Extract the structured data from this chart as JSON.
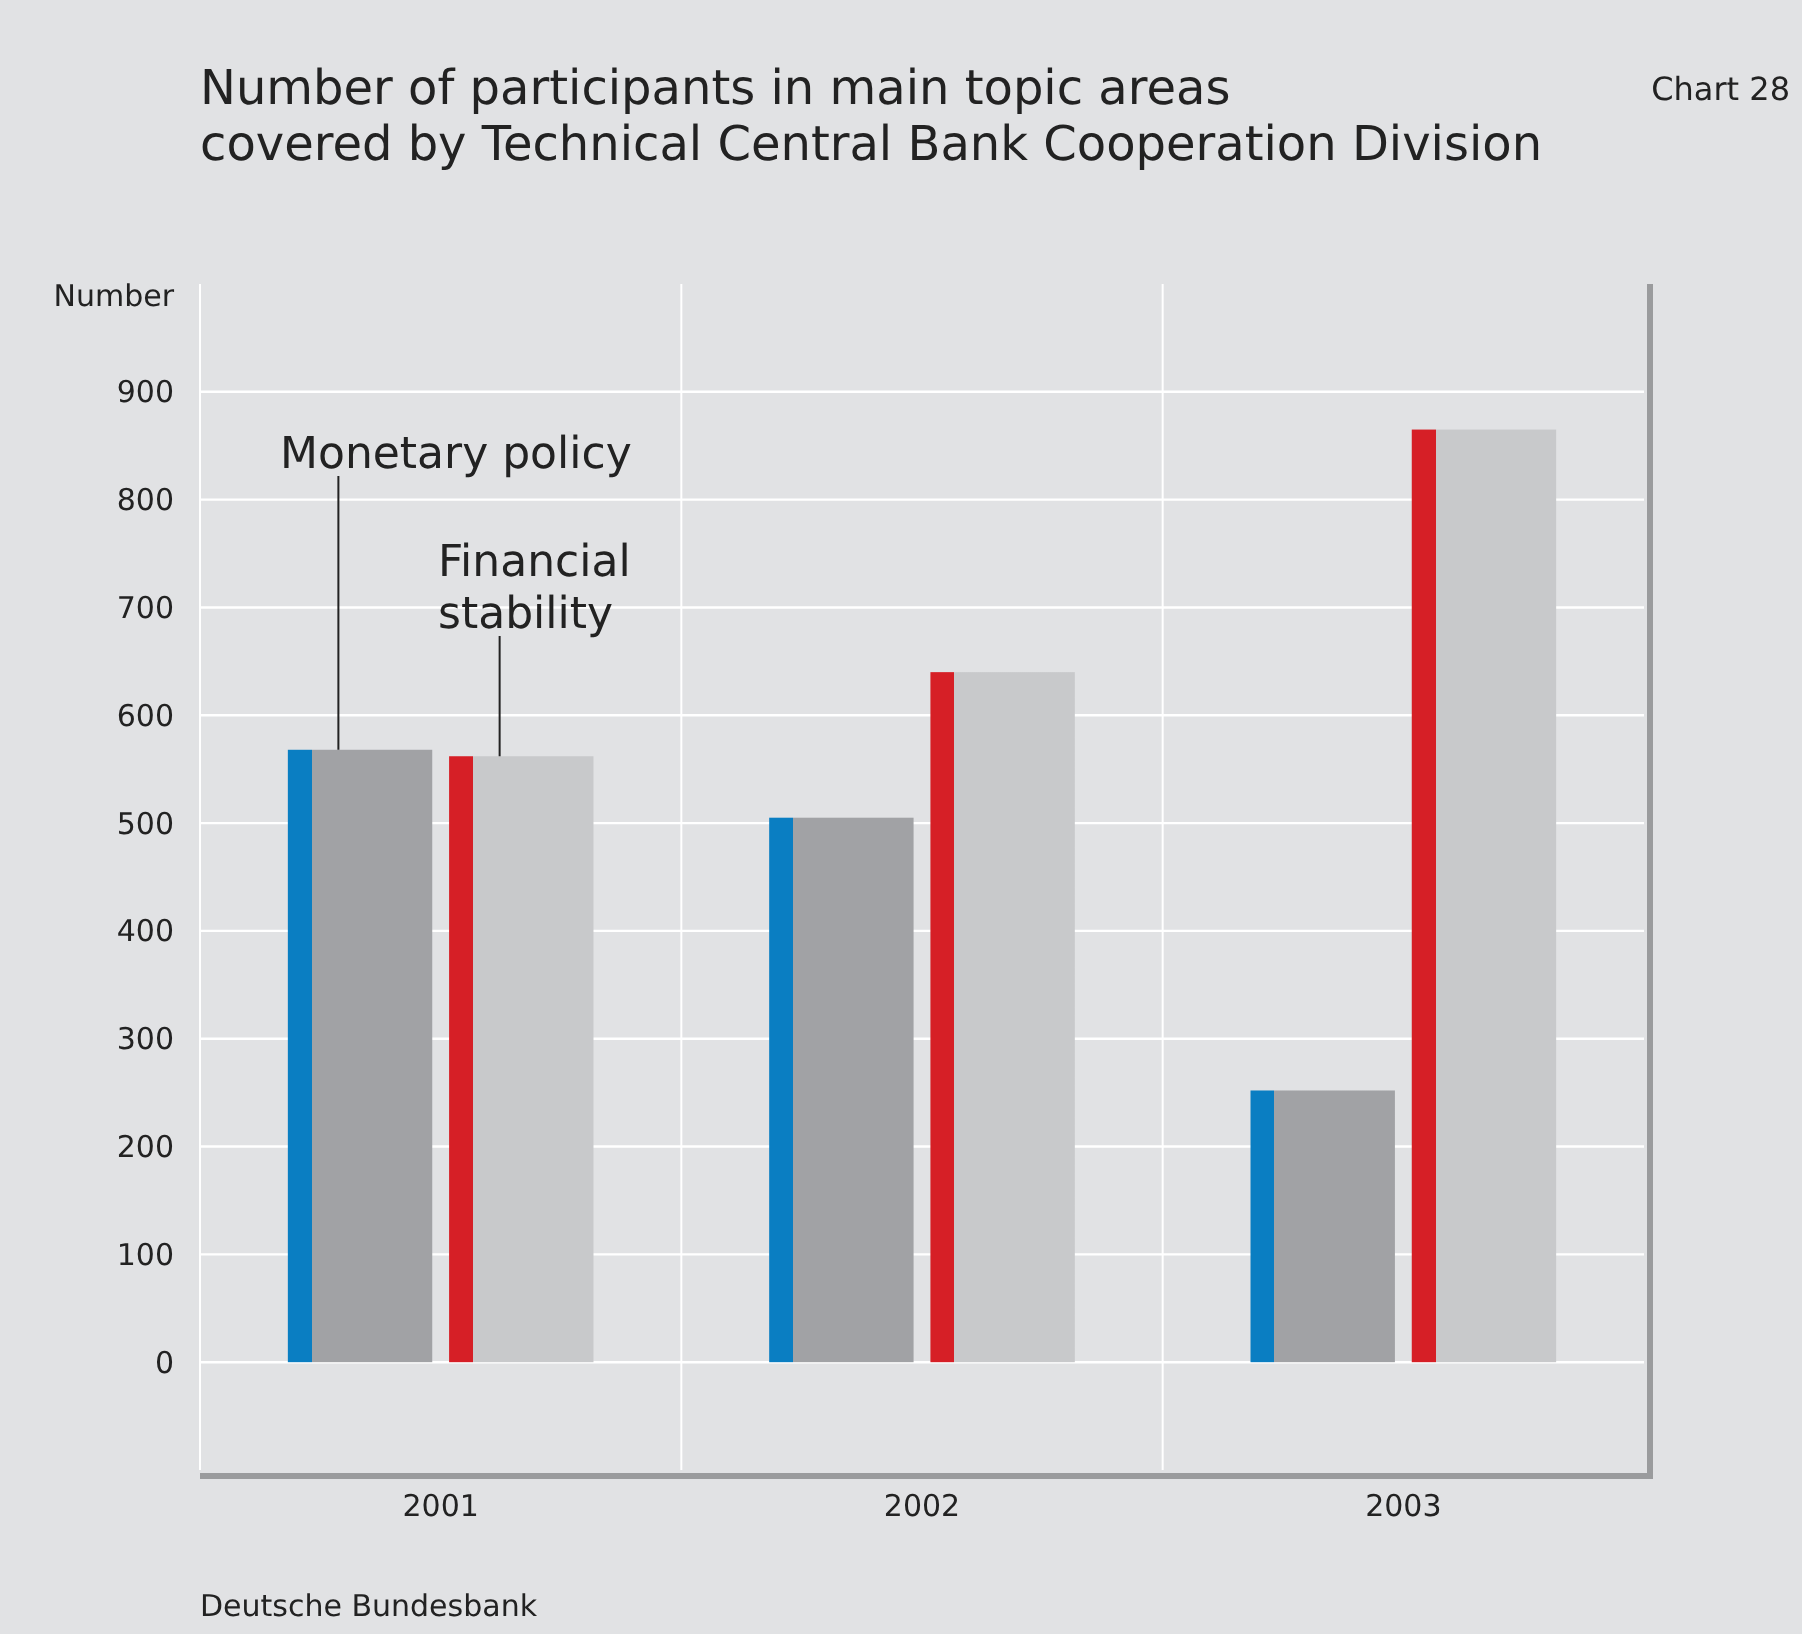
{
  "chart_data": {
    "type": "bar",
    "title": "Number of participants in main topic areas\ncovered by Technical Central Bank Cooperation Division",
    "ylabel": "Number",
    "categories": [
      "2001",
      "2002",
      "2003"
    ],
    "series": [
      {
        "name": "Monetary policy",
        "color": "#a1a2a5",
        "values": [
          568,
          505,
          252
        ]
      },
      {
        "name": "Financial stability",
        "color": "#c8c9cb",
        "values": [
          562,
          640,
          865
        ]
      }
    ],
    "ylim": [
      -100,
      1000
    ],
    "yticks": [
      0,
      100,
      200,
      300,
      400,
      500,
      600,
      700,
      800,
      900
    ],
    "grid": "y",
    "legend": false,
    "annotations": [
      "Chart 28",
      "Deutsche Bundesbank"
    ]
  }
}
